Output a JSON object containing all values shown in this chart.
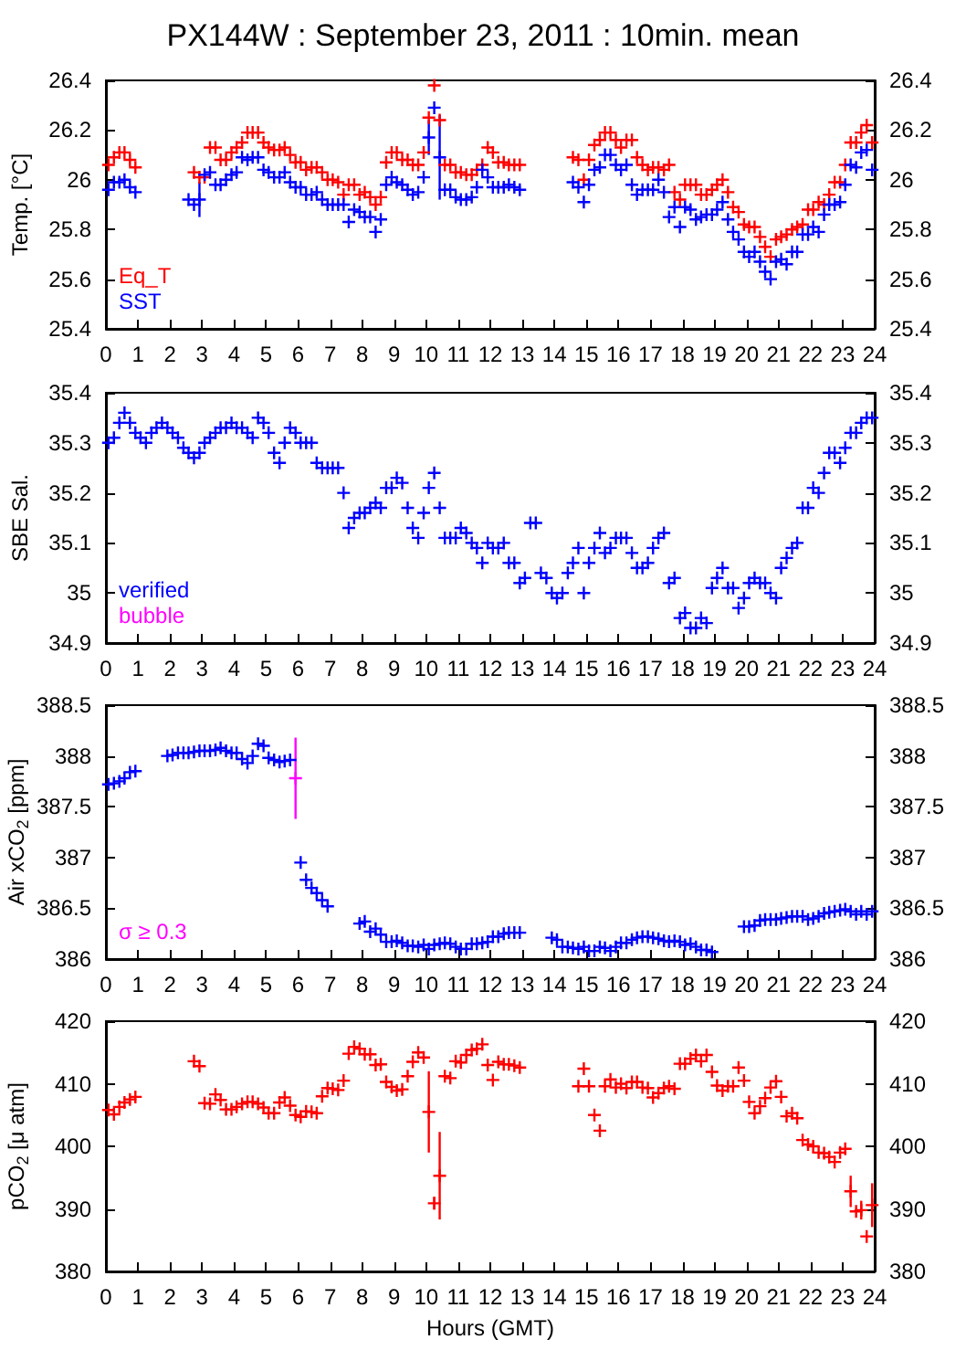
{
  "chart_data": [
    {
      "type": "scatter",
      "title": "PX144W : September 23, 2011 : 10min. mean",
      "ylabel": "Temp. [°C]",
      "marker": "cross",
      "legend": "bottom left",
      "xlim": [
        0,
        24
      ],
      "xticks": [
        0,
        1,
        2,
        3,
        4,
        5,
        6,
        7,
        8,
        9,
        10,
        11,
        12,
        13,
        14,
        15,
        16,
        17,
        18,
        19,
        20,
        21,
        22,
        23,
        24
      ],
      "ylim": [
        25.4,
        26.4
      ],
      "yticks": [
        25.4,
        25.6,
        25.8,
        26,
        26.2,
        26.4
      ],
      "y2lim": [
        25.4,
        26.4
      ],
      "y2ticks": [
        25.4,
        25.6,
        25.8,
        26,
        26.2,
        26.4
      ],
      "series": [
        {
          "name": "Eq_T",
          "color": "#ff0000",
          "x": [
            0.08,
            0.25,
            0.42,
            0.58,
            0.75,
            0.92,
            2.75,
            2.92,
            3.08,
            3.25,
            3.42,
            3.58,
            3.75,
            3.92,
            4.08,
            4.25,
            4.42,
            4.58,
            4.75,
            4.92,
            5.08,
            5.25,
            5.42,
            5.58,
            5.75,
            5.92,
            6.08,
            6.25,
            6.42,
            6.58,
            6.75,
            6.92,
            7.08,
            7.25,
            7.42,
            7.58,
            7.75,
            7.92,
            8.08,
            8.25,
            8.42,
            8.58,
            8.75,
            8.92,
            9.08,
            9.25,
            9.42,
            9.58,
            9.75,
            9.92,
            10.08,
            10.25,
            10.42,
            10.58,
            10.75,
            10.92,
            11.08,
            11.25,
            11.42,
            11.58,
            11.75,
            11.92,
            12.08,
            12.25,
            12.42,
            12.58,
            12.75,
            12.92,
            14.58,
            14.75,
            14.92,
            15.08,
            15.25,
            15.42,
            15.58,
            15.75,
            15.92,
            16.08,
            16.25,
            16.42,
            16.58,
            16.75,
            16.92,
            17.08,
            17.25,
            17.42,
            17.58,
            17.75,
            17.92,
            18.08,
            18.25,
            18.42,
            18.58,
            18.75,
            18.92,
            19.08,
            19.25,
            19.42,
            19.58,
            19.75,
            19.92,
            20.08,
            20.25,
            20.42,
            20.58,
            20.75,
            20.92,
            21.08,
            21.25,
            21.42,
            21.58,
            21.75,
            21.92,
            22.08,
            22.25,
            22.42,
            22.58,
            22.75,
            22.92,
            23.08,
            23.25,
            23.42,
            23.58,
            23.75,
            23.92
          ],
          "values": [
            26.06,
            26.09,
            26.11,
            26.11,
            26.08,
            26.05,
            26.03,
            26.01,
            26.01,
            26.13,
            26.13,
            26.08,
            26.08,
            26.11,
            26.13,
            26.15,
            26.19,
            26.19,
            26.19,
            26.15,
            26.13,
            26.12,
            26.12,
            26.13,
            26.1,
            26.07,
            26.07,
            26.04,
            26.05,
            26.05,
            26.03,
            26.0,
            26.0,
            25.99,
            25.94,
            25.98,
            25.98,
            25.94,
            25.95,
            25.93,
            25.9,
            25.93,
            26.07,
            26.11,
            26.11,
            26.08,
            26.08,
            26.06,
            26.06,
            26.11,
            26.25,
            26.38,
            26.24,
            26.06,
            26.06,
            26.03,
            26.03,
            26.02,
            26.02,
            26.04,
            26.06,
            26.13,
            26.11,
            26.07,
            26.07,
            26.06,
            26.06,
            26.06,
            26.09,
            26.08,
            26.0,
            26.08,
            26.14,
            26.16,
            26.19,
            26.19,
            26.16,
            26.13,
            26.16,
            26.16,
            26.09,
            26.06,
            26.04,
            26.05,
            26.05,
            26.04,
            26.06,
            25.95,
            25.92,
            25.98,
            25.98,
            25.98,
            25.94,
            25.94,
            25.96,
            25.98,
            26.0,
            25.95,
            25.89,
            25.87,
            25.82,
            25.81,
            25.81,
            25.77,
            25.73,
            25.69,
            25.76,
            25.77,
            25.78,
            25.8,
            25.81,
            25.82,
            25.88,
            25.88,
            25.91,
            25.9,
            25.94,
            25.99,
            25.99,
            26.06,
            26.15,
            26.15,
            26.19,
            26.22,
            26.15
          ]
        },
        {
          "name": "SST",
          "color": "#0000ff",
          "x": [
            0.08,
            0.25,
            0.42,
            0.58,
            0.75,
            0.92,
            2.58,
            2.75,
            2.92,
            3.08,
            3.25,
            3.42,
            3.58,
            3.75,
            3.92,
            4.08,
            4.25,
            4.42,
            4.58,
            4.75,
            4.92,
            5.08,
            5.25,
            5.42,
            5.58,
            5.75,
            5.92,
            6.08,
            6.25,
            6.42,
            6.58,
            6.75,
            6.92,
            7.08,
            7.25,
            7.42,
            7.58,
            7.75,
            7.92,
            8.08,
            8.25,
            8.42,
            8.58,
            8.75,
            8.92,
            9.08,
            9.25,
            9.42,
            9.58,
            9.75,
            9.92,
            10.08,
            10.25,
            10.42,
            10.58,
            10.75,
            10.92,
            11.08,
            11.25,
            11.42,
            11.58,
            11.75,
            11.92,
            12.08,
            12.25,
            12.42,
            12.58,
            12.75,
            12.92,
            14.58,
            14.75,
            14.92,
            15.08,
            15.25,
            15.42,
            15.58,
            15.75,
            15.92,
            16.08,
            16.25,
            16.42,
            16.58,
            16.75,
            16.92,
            17.08,
            17.25,
            17.42,
            17.58,
            17.75,
            17.92,
            18.08,
            18.25,
            18.42,
            18.58,
            18.75,
            18.92,
            19.08,
            19.25,
            19.42,
            19.58,
            19.75,
            19.92,
            20.08,
            20.25,
            20.42,
            20.58,
            20.75,
            20.92,
            21.08,
            21.25,
            21.42,
            21.58,
            21.75,
            21.92,
            22.08,
            22.25,
            22.42,
            22.58,
            22.75,
            22.92,
            23.08,
            23.25,
            23.42,
            23.58,
            23.75,
            23.92
          ],
          "values": [
            25.96,
            25.99,
            25.99,
            26.0,
            25.97,
            25.95,
            25.92,
            25.9,
            25.92,
            26.02,
            26.03,
            25.98,
            25.98,
            26.0,
            26.02,
            26.03,
            26.09,
            26.08,
            26.09,
            26.09,
            26.04,
            26.03,
            26.01,
            26.01,
            26.03,
            25.99,
            25.97,
            25.97,
            25.94,
            25.94,
            25.95,
            25.92,
            25.9,
            25.9,
            25.9,
            25.9,
            25.83,
            25.88,
            25.87,
            25.85,
            25.85,
            25.79,
            25.84,
            25.98,
            26.01,
            25.99,
            25.98,
            25.96,
            25.94,
            25.95,
            26.01,
            26.17,
            26.29,
            26.09,
            25.96,
            25.96,
            25.93,
            25.92,
            25.92,
            25.93,
            25.97,
            26.04,
            26.01,
            25.97,
            25.97,
            25.97,
            25.98,
            25.97,
            25.96,
            25.99,
            25.97,
            25.91,
            25.98,
            26.04,
            26.05,
            26.1,
            26.1,
            26.06,
            26.04,
            26.06,
            25.98,
            25.94,
            25.96,
            25.96,
            25.96,
            26.0,
            25.95,
            25.85,
            25.89,
            25.81,
            25.89,
            25.88,
            25.84,
            25.85,
            25.86,
            25.86,
            25.88,
            25.91,
            25.84,
            25.79,
            25.76,
            25.71,
            25.69,
            25.71,
            25.67,
            25.63,
            25.6,
            25.67,
            25.68,
            25.66,
            25.71,
            25.71,
            25.78,
            25.78,
            25.81,
            25.79,
            25.86,
            25.9,
            25.9,
            25.91,
            25.98,
            26.06,
            26.05,
            26.11,
            26.12,
            26.04
          ],
          "errors": [
            null,
            null,
            null,
            null,
            null,
            null,
            null,
            null,
            0.07,
            null,
            null,
            null,
            null,
            null,
            null,
            null,
            null,
            null,
            null,
            null,
            null,
            null,
            null,
            null,
            null,
            null,
            null,
            null,
            null,
            null,
            null,
            null,
            null,
            null,
            null,
            null,
            null,
            null,
            null,
            null,
            null,
            null,
            null,
            null,
            null,
            null,
            null,
            null,
            null,
            null,
            null,
            0.07,
            null,
            0.17,
            null,
            null,
            null,
            null,
            null,
            null,
            null,
            null,
            null,
            null,
            null,
            null,
            null,
            null,
            null,
            null,
            null,
            null,
            null,
            null,
            null,
            null,
            null,
            null,
            null,
            null,
            null,
            null,
            null,
            null,
            null,
            null,
            null,
            null,
            null,
            null,
            null,
            null,
            null,
            null,
            null,
            null,
            null,
            null,
            null,
            null,
            null,
            null,
            null,
            null,
            null,
            null,
            null,
            null,
            null,
            null,
            null,
            null,
            null,
            null,
            null,
            null,
            null,
            null,
            null,
            null,
            null,
            null,
            null,
            null,
            null,
            null
          ]
        }
      ]
    },
    {
      "type": "scatter",
      "ylabel": "SBE Sal.",
      "marker": "cross",
      "legend": "bottom left",
      "xlim": [
        0,
        24
      ],
      "xticks": [
        0,
        1,
        2,
        3,
        4,
        5,
        6,
        7,
        8,
        9,
        10,
        11,
        12,
        13,
        14,
        15,
        16,
        17,
        18,
        19,
        20,
        21,
        22,
        23,
        24
      ],
      "ylim": [
        34.9,
        35.4
      ],
      "yticks": [
        34.9,
        35,
        35.1,
        35.2,
        35.3,
        35.4
      ],
      "y2lim": [
        34.9,
        35.4
      ],
      "y2ticks": [
        34.9,
        35,
        35.1,
        35.2,
        35.3,
        35.4
      ],
      "series": [
        {
          "name": "verified",
          "color": "#0000ff",
          "x": [
            0.08,
            0.25,
            0.42,
            0.58,
            0.75,
            0.92,
            1.08,
            1.25,
            1.42,
            1.58,
            1.75,
            1.92,
            2.08,
            2.25,
            2.42,
            2.58,
            2.75,
            2.92,
            3.08,
            3.25,
            3.42,
            3.58,
            3.75,
            3.92,
            4.08,
            4.25,
            4.42,
            4.58,
            4.75,
            4.92,
            5.08,
            5.25,
            5.42,
            5.58,
            5.75,
            5.92,
            6.08,
            6.25,
            6.42,
            6.58,
            6.75,
            6.92,
            7.08,
            7.25,
            7.42,
            7.58,
            7.75,
            7.92,
            8.08,
            8.25,
            8.42,
            8.58,
            8.75,
            8.92,
            9.08,
            9.25,
            9.42,
            9.58,
            9.75,
            9.92,
            10.08,
            10.25,
            10.42,
            10.58,
            10.75,
            10.92,
            11.08,
            11.25,
            11.42,
            11.58,
            11.75,
            11.92,
            12.08,
            12.25,
            12.42,
            12.58,
            12.75,
            12.92,
            13.08,
            13.25,
            13.42,
            13.58,
            13.75,
            13.92,
            14.08,
            14.25,
            14.42,
            14.58,
            14.75,
            14.92,
            15.08,
            15.25,
            15.42,
            15.58,
            15.75,
            15.92,
            16.08,
            16.25,
            16.42,
            16.58,
            16.75,
            16.92,
            17.08,
            17.25,
            17.42,
            17.58,
            17.75,
            17.92,
            18.08,
            18.25,
            18.42,
            18.58,
            18.75,
            18.92,
            19.08,
            19.25,
            19.42,
            19.58,
            19.75,
            19.92,
            20.08,
            20.25,
            20.42,
            20.58,
            20.75,
            20.92,
            21.08,
            21.25,
            21.42,
            21.58,
            21.75,
            21.92,
            22.08,
            22.25,
            22.42,
            22.58,
            22.75,
            22.92,
            23.08,
            23.25,
            23.42,
            23.58,
            23.75,
            23.92
          ],
          "values": [
            35.3,
            35.31,
            35.34,
            35.36,
            35.34,
            35.32,
            35.31,
            35.3,
            35.32,
            35.33,
            35.34,
            35.33,
            35.32,
            35.31,
            35.29,
            35.28,
            35.27,
            35.28,
            35.3,
            35.31,
            35.32,
            35.33,
            35.33,
            35.34,
            35.33,
            35.33,
            35.32,
            35.31,
            35.35,
            35.34,
            35.32,
            35.28,
            35.26,
            35.3,
            35.33,
            35.32,
            35.3,
            35.3,
            35.3,
            35.26,
            35.25,
            35.25,
            35.25,
            35.25,
            35.2,
            35.13,
            35.15,
            35.16,
            35.16,
            35.17,
            35.18,
            35.17,
            35.21,
            35.21,
            35.23,
            35.22,
            35.17,
            35.13,
            35.11,
            35.16,
            35.21,
            35.24,
            35.17,
            35.11,
            35.11,
            35.11,
            35.13,
            35.12,
            35.1,
            35.09,
            35.06,
            35.1,
            35.09,
            35.09,
            35.1,
            35.06,
            35.06,
            35.02,
            35.03,
            35.14,
            35.14,
            35.04,
            35.03,
            35.0,
            34.99,
            35.0,
            35.04,
            35.06,
            35.09,
            35.0,
            35.06,
            35.09,
            35.12,
            35.08,
            35.09,
            35.11,
            35.11,
            35.11,
            35.08,
            35.05,
            35.05,
            35.06,
            35.09,
            35.11,
            35.12,
            35.02,
            35.03,
            34.95,
            34.96,
            34.93,
            34.93,
            34.95,
            34.94,
            35.01,
            35.03,
            35.05,
            35.01,
            35.01,
            34.97,
            34.99,
            35.02,
            35.03,
            35.02,
            35.02,
            35.0,
            34.99,
            35.05,
            35.07,
            35.09,
            35.1,
            35.17,
            35.17,
            35.21,
            35.2,
            35.24,
            35.28,
            35.28,
            35.26,
            35.29,
            35.32,
            35.32,
            35.34,
            35.35,
            35.35
          ]
        },
        {
          "name": "bubble",
          "color": "#ff00ff"
        }
      ]
    },
    {
      "type": "scatter",
      "ylabel": "Air xCO$_{2}$ [ppm]",
      "marker": "cross",
      "legend": "bottom left",
      "xlim": [
        0,
        24
      ],
      "xticks": [
        0,
        1,
        2,
        3,
        4,
        5,
        6,
        7,
        8,
        9,
        10,
        11,
        12,
        13,
        14,
        15,
        16,
        17,
        18,
        19,
        20,
        21,
        22,
        23,
        24
      ],
      "ylim": [
        386,
        388.5
      ],
      "yticks": [
        386,
        386.5,
        387,
        387.5,
        388,
        388.5
      ],
      "y2lim": [
        386,
        388.5
      ],
      "y2ticks": [
        386,
        386.5,
        387,
        387.5,
        388,
        388.5
      ],
      "series": [
        {
          "color": "#0000ff",
          "x": [
            0.08,
            0.25,
            0.42,
            0.58,
            0.75,
            0.92,
            1.92,
            2.08,
            2.25,
            2.42,
            2.58,
            2.75,
            2.92,
            3.08,
            3.25,
            3.42,
            3.58,
            3.75,
            3.92,
            4.08,
            4.25,
            4.42,
            4.58,
            4.75,
            4.92,
            5.08,
            5.25,
            5.42,
            5.58,
            5.75,
            6.08,
            6.25,
            6.42,
            6.58,
            6.75,
            6.92,
            7.92,
            8.08,
            8.25,
            8.42,
            8.58,
            8.75,
            8.92,
            9.08,
            9.25,
            9.42,
            9.58,
            9.75,
            9.92,
            10.08,
            10.25,
            10.42,
            10.58,
            10.75,
            10.92,
            11.08,
            11.25,
            11.42,
            11.58,
            11.75,
            11.92,
            12.08,
            12.25,
            12.42,
            12.58,
            12.75,
            12.92,
            13.92,
            14.08,
            14.25,
            14.42,
            14.58,
            14.75,
            14.92,
            15.08,
            15.25,
            15.42,
            15.58,
            15.75,
            15.92,
            16.08,
            16.25,
            16.42,
            16.58,
            16.75,
            16.92,
            17.08,
            17.25,
            17.42,
            17.58,
            17.75,
            17.92,
            18.08,
            18.25,
            18.42,
            18.58,
            18.75,
            18.92,
            19.92,
            20.08,
            20.25,
            20.42,
            20.58,
            20.75,
            20.92,
            21.08,
            21.25,
            21.42,
            21.58,
            21.75,
            21.92,
            22.08,
            22.25,
            22.42,
            22.58,
            22.75,
            22.92,
            23.08,
            23.25,
            23.42,
            23.58,
            23.75,
            23.92
          ],
          "values": [
            387.72,
            387.73,
            387.75,
            387.78,
            387.84,
            387.85,
            388.0,
            388.01,
            388.03,
            388.03,
            388.03,
            388.04,
            388.05,
            388.05,
            388.05,
            388.06,
            388.08,
            388.05,
            388.03,
            388.03,
            387.97,
            387.93,
            388.0,
            388.12,
            388.1,
            387.98,
            387.96,
            387.94,
            387.95,
            387.96,
            386.95,
            386.78,
            386.7,
            386.65,
            386.58,
            386.52,
            386.35,
            386.37,
            386.27,
            386.3,
            386.24,
            386.17,
            386.17,
            386.18,
            386.16,
            386.13,
            386.13,
            386.12,
            386.14,
            386.1,
            386.14,
            386.15,
            386.16,
            386.15,
            386.12,
            386.1,
            386.1,
            386.15,
            386.15,
            386.16,
            386.17,
            386.22,
            386.22,
            386.25,
            386.26,
            386.26,
            386.26,
            386.21,
            386.19,
            386.12,
            386.12,
            386.11,
            386.1,
            386.12,
            386.08,
            386.08,
            386.12,
            386.11,
            386.08,
            386.12,
            386.16,
            386.16,
            386.19,
            386.21,
            386.22,
            386.22,
            386.21,
            386.2,
            386.18,
            386.17,
            386.18,
            386.17,
            386.14,
            386.15,
            386.12,
            386.09,
            386.09,
            386.07,
            386.32,
            386.32,
            386.33,
            386.38,
            386.39,
            386.39,
            386.39,
            386.4,
            386.41,
            386.42,
            386.42,
            386.42,
            386.39,
            386.4,
            386.42,
            386.45,
            386.46,
            386.47,
            386.48,
            386.49,
            386.47,
            386.44,
            386.47,
            386.44,
            386.47
          ]
        },
        {
          "name": "σ ≥ 0.3",
          "color": "#ff00ff",
          "x": [
            5.92
          ],
          "values": [
            387.78
          ],
          "errors": [
            0.4
          ]
        }
      ]
    },
    {
      "type": "scatter",
      "ylabel": "pCO$_{2}$ [μ atm]",
      "xlabel": "Hours (GMT)",
      "marker": "cross",
      "xlim": [
        0,
        24
      ],
      "xticks": [
        0,
        1,
        2,
        3,
        4,
        5,
        6,
        7,
        8,
        9,
        10,
        11,
        12,
        13,
        14,
        15,
        16,
        17,
        18,
        19,
        20,
        21,
        22,
        23,
        24
      ],
      "ylim": [
        380,
        420
      ],
      "yticks": [
        380,
        390,
        400,
        410,
        420
      ],
      "y2lim": [
        380,
        420
      ],
      "y2ticks": [
        380,
        390,
        400,
        410,
        420
      ],
      "series": [
        {
          "color": "#ff0000",
          "x": [
            0.08,
            0.25,
            0.42,
            0.58,
            0.75,
            0.92,
            2.75,
            2.92,
            3.08,
            3.25,
            3.42,
            3.58,
            3.75,
            3.92,
            4.08,
            4.25,
            4.42,
            4.58,
            4.75,
            4.92,
            5.08,
            5.25,
            5.42,
            5.58,
            5.75,
            5.92,
            6.08,
            6.25,
            6.42,
            6.58,
            6.75,
            6.92,
            7.08,
            7.25,
            7.42,
            7.58,
            7.75,
            7.92,
            8.08,
            8.25,
            8.42,
            8.58,
            8.75,
            8.92,
            9.08,
            9.25,
            9.42,
            9.58,
            9.75,
            9.92,
            10.08,
            10.25,
            10.42,
            10.58,
            10.75,
            10.92,
            11.08,
            11.25,
            11.42,
            11.58,
            11.75,
            11.92,
            12.08,
            12.25,
            12.42,
            12.58,
            12.75,
            12.92,
            14.75,
            14.92,
            15.08,
            15.25,
            15.42,
            15.58,
            15.75,
            15.92,
            16.08,
            16.25,
            16.42,
            16.58,
            16.75,
            16.92,
            17.08,
            17.25,
            17.42,
            17.58,
            17.75,
            17.92,
            18.08,
            18.25,
            18.42,
            18.58,
            18.75,
            18.92,
            19.08,
            19.25,
            19.42,
            19.58,
            19.75,
            19.92,
            20.08,
            20.25,
            20.42,
            20.58,
            20.75,
            20.92,
            21.08,
            21.25,
            21.42,
            21.58,
            21.75,
            21.92,
            22.08,
            22.25,
            22.42,
            22.58,
            22.75,
            22.92,
            23.08,
            23.25,
            23.42,
            23.58,
            23.75,
            23.92
          ],
          "values": [
            405.8,
            405.1,
            406.3,
            407.0,
            407.5,
            407.9,
            413.6,
            412.8,
            406.9,
            406.8,
            408.3,
            407.4,
            405.9,
            405.9,
            406.3,
            406.8,
            407.1,
            407.1,
            406.8,
            406.2,
            405.3,
            405.3,
            407.0,
            407.8,
            406.5,
            405.0,
            404.7,
            405.6,
            405.5,
            405.3,
            408.0,
            409.3,
            409.2,
            409.0,
            410.5,
            414.8,
            415.9,
            415.6,
            414.7,
            414.7,
            413.0,
            413.1,
            410.3,
            409.5,
            408.9,
            409.1,
            411.2,
            413.5,
            415.0,
            414.2,
            405.5,
            390.9,
            395.3,
            411.2,
            410.9,
            413.6,
            413.4,
            414.6,
            415.4,
            415.6,
            416.3,
            413.0,
            410.6,
            413.5,
            413.1,
            413.1,
            412.9,
            412.6,
            409.6,
            412.4,
            409.6,
            405.0,
            402.5,
            409.6,
            410.7,
            409.4,
            410.0,
            409.3,
            410.3,
            410.3,
            409.4,
            409.3,
            407.8,
            408.5,
            409.3,
            409.6,
            409.2,
            413.2,
            413.2,
            414.0,
            414.6,
            413.6,
            414.6,
            411.9,
            409.7,
            408.9,
            409.6,
            409.6,
            412.6,
            410.5,
            407.1,
            405.3,
            406.4,
            407.7,
            409.4,
            410.4,
            407.9,
            404.8,
            405.3,
            404.5,
            401.0,
            400.3,
            400.0,
            399.0,
            398.9,
            398.3,
            397.5,
            399.0,
            399.6,
            392.8,
            389.6,
            389.8,
            385.6,
            390.6
          ],
          "errors": [
            null,
            null,
            null,
            null,
            null,
            null,
            null,
            null,
            null,
            null,
            null,
            null,
            null,
            null,
            null,
            null,
            null,
            null,
            null,
            null,
            null,
            null,
            null,
            null,
            null,
            null,
            null,
            null,
            null,
            null,
            null,
            null,
            null,
            null,
            null,
            null,
            null,
            null,
            null,
            null,
            null,
            null,
            null,
            null,
            null,
            null,
            null,
            null,
            null,
            null,
            6.5,
            1,
            7,
            null,
            null,
            null,
            null,
            null,
            null,
            null,
            null,
            null,
            null,
            null,
            null,
            null,
            null,
            null,
            null,
            null,
            null,
            null,
            null,
            null,
            null,
            null,
            null,
            null,
            null,
            null,
            null,
            null,
            null,
            null,
            null,
            null,
            null,
            null,
            null,
            null,
            null,
            null,
            null,
            null,
            null,
            null,
            null,
            null,
            null,
            null,
            null,
            null,
            null,
            null,
            null,
            null,
            null,
            null,
            null,
            null,
            null,
            null,
            null,
            null,
            null,
            null,
            null,
            null,
            null,
            2.5,
            null,
            1.5,
            null,
            3.5
          ]
        }
      ]
    }
  ]
}
